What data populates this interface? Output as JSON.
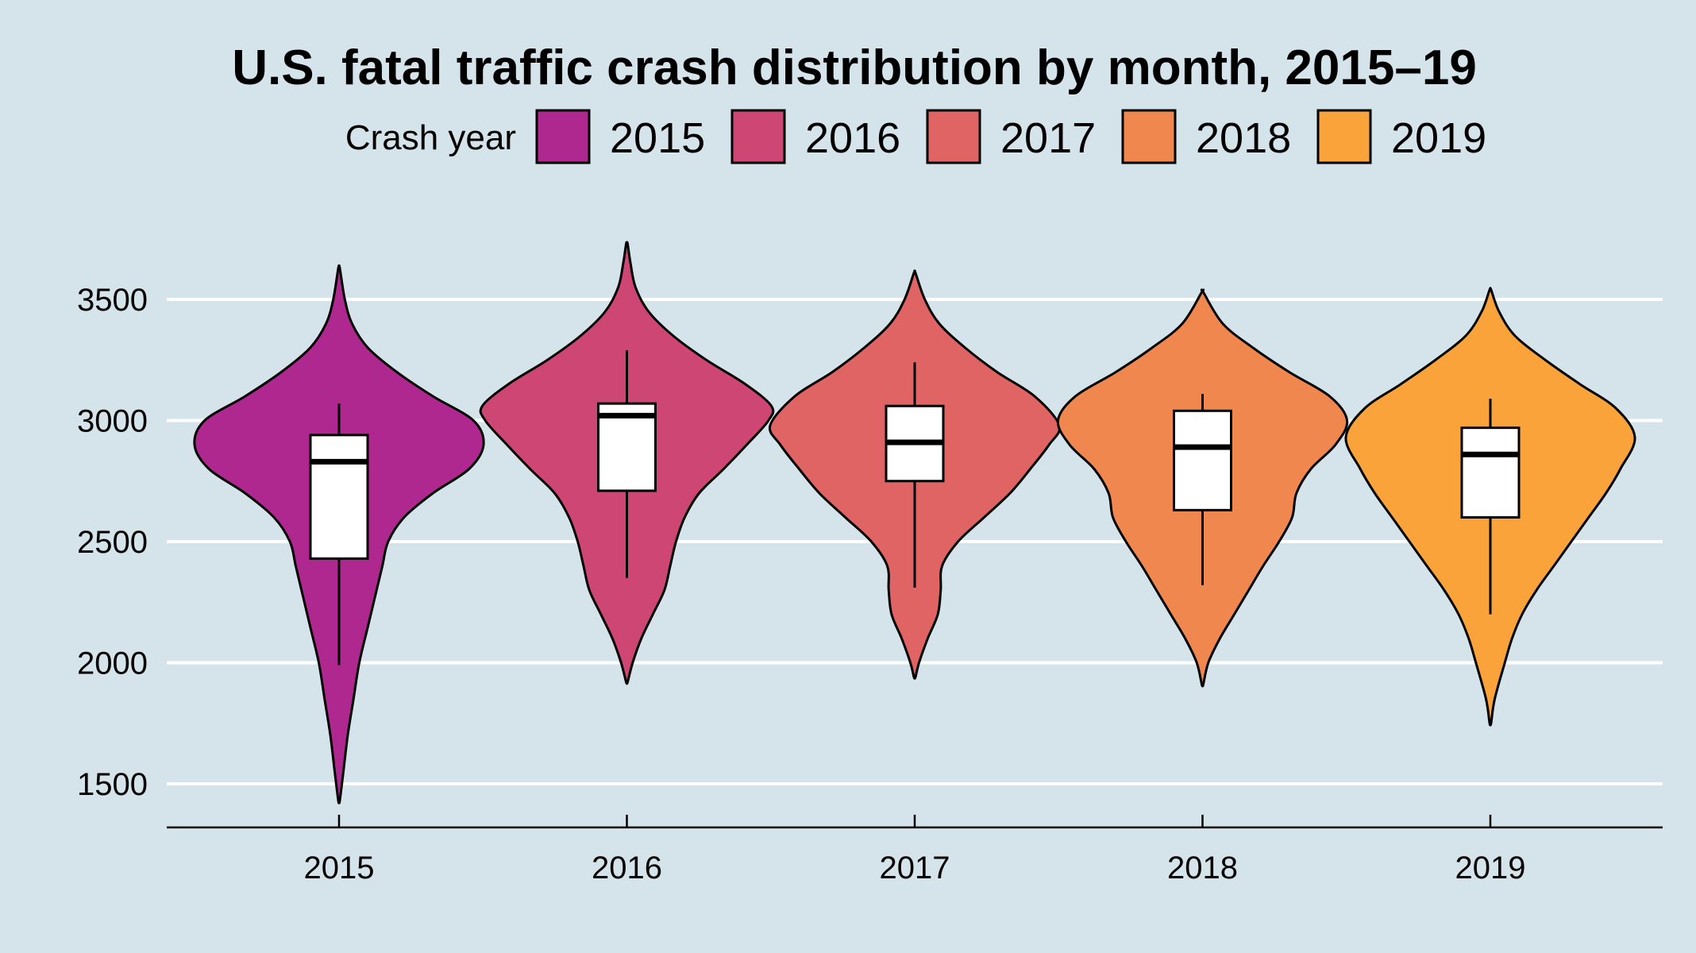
{
  "chart_data": {
    "type": "violin",
    "title": "U.S. fatal traffic crash distribution by month, 2015–19",
    "xlabel": "",
    "ylabel": "",
    "ylim": [
      1320,
      3700
    ],
    "y_ticks": [
      1500,
      2000,
      2500,
      3000,
      3500
    ],
    "grid": "horizontal",
    "legend": {
      "title": "Crash year",
      "placement": "top",
      "entries": [
        "2015",
        "2016",
        "2017",
        "2018",
        "2019"
      ]
    },
    "categories": [
      "2015",
      "2016",
      "2017",
      "2018",
      "2019"
    ],
    "series": [
      {
        "name": "2015",
        "color": "#ae2890",
        "violin_extent": [
          1430,
          3630
        ],
        "box": {
          "whisker_low": 1990,
          "q1": 2430,
          "median": 2830,
          "q3": 2940,
          "whisker_high": 3070
        },
        "density_profile": [
          [
            1430,
            0.005
          ],
          [
            1550,
            0.03
          ],
          [
            1700,
            0.06
          ],
          [
            1850,
            0.1
          ],
          [
            2000,
            0.14
          ],
          [
            2150,
            0.2
          ],
          [
            2300,
            0.26
          ],
          [
            2400,
            0.3
          ],
          [
            2500,
            0.34
          ],
          [
            2600,
            0.45
          ],
          [
            2700,
            0.65
          ],
          [
            2800,
            0.9
          ],
          [
            2900,
            1.0
          ],
          [
            3000,
            0.93
          ],
          [
            3100,
            0.65
          ],
          [
            3200,
            0.4
          ],
          [
            3300,
            0.2
          ],
          [
            3400,
            0.09
          ],
          [
            3500,
            0.04
          ],
          [
            3630,
            0.005
          ]
        ]
      },
      {
        "name": "2016",
        "color": "#cd4674",
        "violin_extent": [
          1920,
          3730
        ],
        "box": {
          "whisker_low": 2350,
          "q1": 2710,
          "median": 3020,
          "q3": 3070,
          "whisker_high": 3290
        },
        "density_profile": [
          [
            1920,
            0.005
          ],
          [
            2000,
            0.04
          ],
          [
            2100,
            0.1
          ],
          [
            2200,
            0.18
          ],
          [
            2300,
            0.26
          ],
          [
            2400,
            0.3
          ],
          [
            2500,
            0.34
          ],
          [
            2600,
            0.4
          ],
          [
            2700,
            0.5
          ],
          [
            2800,
            0.67
          ],
          [
            2900,
            0.83
          ],
          [
            3000,
            0.98
          ],
          [
            3060,
            1.0
          ],
          [
            3150,
            0.82
          ],
          [
            3250,
            0.55
          ],
          [
            3350,
            0.32
          ],
          [
            3450,
            0.15
          ],
          [
            3550,
            0.06
          ],
          [
            3650,
            0.025
          ],
          [
            3730,
            0.005
          ]
        ]
      },
      {
        "name": "2017",
        "color": "#e06463",
        "violin_extent": [
          1940,
          3610
        ],
        "box": {
          "whisker_low": 2310,
          "q1": 2750,
          "median": 2910,
          "q3": 3060,
          "whisker_high": 3240
        },
        "density_profile": [
          [
            1940,
            0.005
          ],
          [
            2000,
            0.03
          ],
          [
            2100,
            0.09
          ],
          [
            2200,
            0.16
          ],
          [
            2300,
            0.18
          ],
          [
            2400,
            0.19
          ],
          [
            2500,
            0.3
          ],
          [
            2600,
            0.48
          ],
          [
            2700,
            0.66
          ],
          [
            2800,
            0.8
          ],
          [
            2900,
            0.93
          ],
          [
            2980,
            1.0
          ],
          [
            3100,
            0.83
          ],
          [
            3200,
            0.57
          ],
          [
            3300,
            0.35
          ],
          [
            3400,
            0.17
          ],
          [
            3500,
            0.07
          ],
          [
            3610,
            0.005
          ]
        ]
      },
      {
        "name": "2018",
        "color": "#f0874e",
        "violin_extent": [
          1910,
          3530
        ],
        "box": {
          "whisker_low": 2320,
          "q1": 2630,
          "median": 2890,
          "q3": 3040,
          "whisker_high": 3110
        },
        "density_profile": [
          [
            1910,
            0.005
          ],
          [
            2000,
            0.04
          ],
          [
            2100,
            0.12
          ],
          [
            2200,
            0.22
          ],
          [
            2300,
            0.32
          ],
          [
            2400,
            0.42
          ],
          [
            2500,
            0.53
          ],
          [
            2600,
            0.62
          ],
          [
            2700,
            0.65
          ],
          [
            2800,
            0.75
          ],
          [
            2900,
            0.92
          ],
          [
            3000,
            1.0
          ],
          [
            3100,
            0.88
          ],
          [
            3200,
            0.6
          ],
          [
            3300,
            0.35
          ],
          [
            3400,
            0.14
          ],
          [
            3530,
            0.005
          ]
        ]
      },
      {
        "name": "2019",
        "color": "#fba33b",
        "violin_extent": [
          1750,
          3540
        ],
        "box": {
          "whisker_low": 2200,
          "q1": 2600,
          "median": 2860,
          "q3": 2970,
          "whisker_high": 3090
        },
        "density_profile": [
          [
            1750,
            0.005
          ],
          [
            1850,
            0.03
          ],
          [
            2000,
            0.1
          ],
          [
            2100,
            0.15
          ],
          [
            2200,
            0.22
          ],
          [
            2300,
            0.32
          ],
          [
            2400,
            0.44
          ],
          [
            2500,
            0.56
          ],
          [
            2600,
            0.68
          ],
          [
            2700,
            0.8
          ],
          [
            2800,
            0.9
          ],
          [
            2930,
            1.0
          ],
          [
            3050,
            0.87
          ],
          [
            3150,
            0.62
          ],
          [
            3250,
            0.38
          ],
          [
            3350,
            0.17
          ],
          [
            3450,
            0.06
          ],
          [
            3540,
            0.005
          ]
        ]
      }
    ]
  }
}
